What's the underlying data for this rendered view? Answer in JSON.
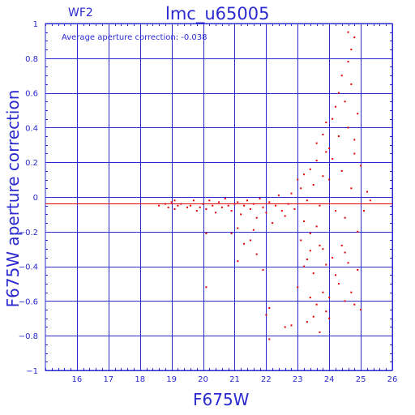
{
  "chart_data": {
    "type": "scatter",
    "title": "lmc_u65005",
    "panel_label": "WF2",
    "xlabel": "F675W",
    "ylabel": "F675W aperture correction",
    "annotation": "Average aperture correction: -0.038",
    "xlim": [
      15,
      26
    ],
    "ylim": [
      -1,
      1
    ],
    "x_ticks": [
      16,
      17,
      18,
      19,
      20,
      21,
      22,
      23,
      24,
      25,
      26
    ],
    "y_ticks": [
      1,
      0.8,
      0.6,
      0.4,
      0.2,
      0,
      -0.2,
      -0.4,
      -0.6,
      -0.8,
      -1
    ],
    "y_tick_labels": [
      "1",
      "0.8",
      "0.6",
      "0.4",
      "0.2",
      "0",
      "−0.2",
      "−0.4",
      "−0.6",
      "−0.8",
      "−1"
    ],
    "grid": true,
    "reference_line_y": 0,
    "average_line_y": -0.038,
    "colors": {
      "axis": "#2a2ad0",
      "points": "#e00000",
      "average_line": "#e00000"
    },
    "series": [
      {
        "points": [
          [
            18.6,
            -0.05
          ],
          [
            18.8,
            -0.04
          ],
          [
            18.9,
            -0.06
          ],
          [
            19.0,
            -0.03
          ],
          [
            19.1,
            -0.07
          ],
          [
            19.2,
            -0.05
          ],
          [
            19.3,
            -0.04
          ],
          [
            19.1,
            -0.02
          ],
          [
            19.5,
            -0.06
          ],
          [
            19.6,
            -0.05
          ],
          [
            19.7,
            -0.02
          ],
          [
            19.8,
            -0.08
          ],
          [
            19.9,
            -0.06
          ],
          [
            20.0,
            -0.04
          ],
          [
            20.1,
            -0.07
          ],
          [
            20.2,
            -0.02
          ],
          [
            20.3,
            -0.05
          ],
          [
            20.4,
            -0.09
          ],
          [
            20.5,
            -0.03
          ],
          [
            20.6,
            -0.06
          ],
          [
            20.7,
            -0.01
          ],
          [
            20.8,
            -0.05
          ],
          [
            20.9,
            -0.08
          ],
          [
            21.0,
            -0.04
          ],
          [
            21.1,
            -0.03
          ],
          [
            21.2,
            -0.1
          ],
          [
            21.3,
            -0.05
          ],
          [
            21.4,
            -0.02
          ],
          [
            21.5,
            -0.07
          ],
          [
            21.6,
            -0.04
          ],
          [
            21.7,
            -0.12
          ],
          [
            21.8,
            -0.01
          ],
          [
            21.9,
            -0.06
          ],
          [
            22.0,
            -0.09
          ],
          [
            22.1,
            -0.03
          ],
          [
            22.2,
            -0.15
          ],
          [
            22.3,
            -0.05
          ],
          [
            22.4,
            0.01
          ],
          [
            22.5,
            -0.08
          ],
          [
            22.6,
            -0.11
          ],
          [
            22.7,
            -0.04
          ],
          [
            22.8,
            0.02
          ],
          [
            22.9,
            -0.07
          ],
          [
            20.1,
            -0.21
          ],
          [
            20.9,
            -0.21
          ],
          [
            21.1,
            -0.18
          ],
          [
            21.3,
            -0.27
          ],
          [
            21.6,
            -0.19
          ],
          [
            21.1,
            -0.37
          ],
          [
            21.7,
            -0.33
          ],
          [
            21.9,
            -0.42
          ],
          [
            21.5,
            -0.25
          ],
          [
            22.0,
            -0.68
          ],
          [
            22.1,
            -0.64
          ],
          [
            22.1,
            -0.82
          ],
          [
            20.1,
            -0.52
          ],
          [
            22.8,
            -0.74
          ],
          [
            22.6,
            -0.75
          ],
          [
            23.0,
            0.1
          ],
          [
            23.1,
            0.05
          ],
          [
            23.2,
            0.13
          ],
          [
            23.3,
            -0.02
          ],
          [
            23.4,
            0.16
          ],
          [
            23.5,
            0.07
          ],
          [
            23.6,
            0.21
          ],
          [
            23.7,
            -0.05
          ],
          [
            23.8,
            0.12
          ],
          [
            23.9,
            0.26
          ],
          [
            23.2,
            -0.14
          ],
          [
            23.4,
            -0.21
          ],
          [
            23.6,
            -0.17
          ],
          [
            23.8,
            -0.3
          ],
          [
            23.3,
            -0.36
          ],
          [
            23.5,
            -0.44
          ],
          [
            23.7,
            -0.28
          ],
          [
            23.9,
            -0.39
          ],
          [
            23.1,
            -0.25
          ],
          [
            23.0,
            -0.52
          ],
          [
            23.4,
            -0.58
          ],
          [
            23.6,
            -0.62
          ],
          [
            23.8,
            -0.55
          ],
          [
            23.5,
            -0.69
          ],
          [
            23.3,
            -0.72
          ],
          [
            23.7,
            -0.78
          ],
          [
            23.9,
            -0.66
          ],
          [
            23.4,
            -0.31
          ],
          [
            23.2,
            -0.4
          ],
          [
            23.6,
            0.31
          ],
          [
            23.8,
            0.36
          ],
          [
            24.0,
            0.28
          ],
          [
            23.9,
            0.43
          ],
          [
            24.0,
            0.1
          ],
          [
            24.1,
            0.22
          ],
          [
            24.2,
            -0.08
          ],
          [
            24.3,
            0.35
          ],
          [
            24.4,
            0.15
          ],
          [
            24.5,
            -0.12
          ],
          [
            24.6,
            0.4
          ],
          [
            24.7,
            0.05
          ],
          [
            24.8,
            0.25
          ],
          [
            24.9,
            -0.2
          ],
          [
            25.0,
            0.18
          ],
          [
            24.1,
            0.45
          ],
          [
            24.2,
            0.52
          ],
          [
            24.3,
            0.6
          ],
          [
            24.4,
            0.7
          ],
          [
            24.5,
            0.55
          ],
          [
            24.6,
            0.78
          ],
          [
            24.7,
            0.85
          ],
          [
            24.6,
            0.95
          ],
          [
            24.8,
            0.92
          ],
          [
            24.7,
            0.65
          ],
          [
            24.9,
            0.48
          ],
          [
            24.8,
            0.33
          ],
          [
            24.1,
            -0.35
          ],
          [
            24.2,
            -0.45
          ],
          [
            24.3,
            -0.5
          ],
          [
            24.4,
            -0.28
          ],
          [
            24.5,
            -0.6
          ],
          [
            24.6,
            -0.38
          ],
          [
            24.7,
            -0.55
          ],
          [
            24.8,
            -0.62
          ],
          [
            24.9,
            -0.42
          ],
          [
            25.0,
            -0.65
          ],
          [
            24.0,
            -0.7
          ],
          [
            24.5,
            -0.32
          ],
          [
            24.0,
            -0.58
          ],
          [
            25.1,
            -0.08
          ],
          [
            25.2,
            0.03
          ],
          [
            25.3,
            -0.02
          ]
        ]
      }
    ]
  }
}
